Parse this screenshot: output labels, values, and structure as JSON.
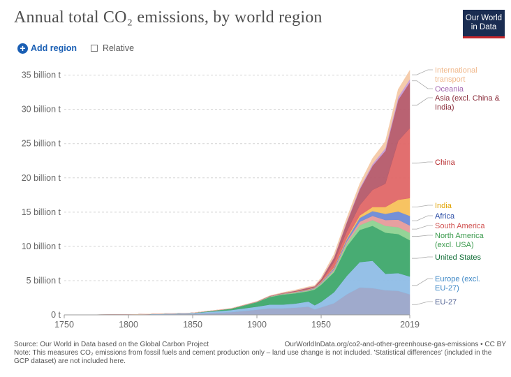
{
  "header": {
    "title": "Annual total CO₂ emissions, by world region",
    "logo_line1": "Our World",
    "logo_line2": "in Data"
  },
  "controls": {
    "add_label": "Add region",
    "relative_label": "Relative"
  },
  "footer": {
    "source": "Source: Our World in Data based on the Global Carbon Project",
    "url": "OurWorldInData.org/co2-and-other-greenhouse-gas-emissions • CC BY",
    "note": "Note: This measures CO₂ emissions from fossil fuels and cement production only – land use change is not included. 'Statistical differences' (included in the GCP dataset) are not included here."
  },
  "chart_data": {
    "type": "area",
    "stacked": true,
    "unit": "billion t",
    "x": [
      1750,
      1800,
      1850,
      1880,
      1900,
      1910,
      1920,
      1930,
      1940,
      1945,
      1950,
      1960,
      1970,
      1980,
      1990,
      2000,
      2010,
      2019
    ],
    "xticks": [
      1750,
      1800,
      1850,
      1900,
      1950,
      2019
    ],
    "yticks": [
      0,
      5,
      10,
      15,
      20,
      25,
      30,
      35
    ],
    "ytick_labels": [
      "0 t",
      "5 billion t",
      "10 billion t",
      "15 billion t",
      "20 billion t",
      "25 billion t",
      "30 billion t",
      "35 billion t"
    ],
    "ylim": [
      0,
      37
    ],
    "grid": "horizontal dashed",
    "legend": "right, inline labels at 2019",
    "series": [
      {
        "name": "EU-27",
        "color": "#9aa5c9",
        "values": [
          0.01,
          0.03,
          0.15,
          0.4,
          0.75,
          0.95,
          0.95,
          1.05,
          1.2,
          0.8,
          1.1,
          1.7,
          3.0,
          4.0,
          3.9,
          3.6,
          3.5,
          3.0
        ]
      },
      {
        "name": "Europe (excl. EU-27)",
        "color": "#8fbde6",
        "values": [
          0.0,
          0.01,
          0.12,
          0.3,
          0.45,
          0.55,
          0.55,
          0.6,
          0.75,
          0.6,
          0.8,
          1.6,
          2.7,
          3.7,
          4.0,
          2.4,
          2.6,
          2.6
        ]
      },
      {
        "name": "United States",
        "color": "#3ea86b",
        "values": [
          0.0,
          0.0,
          0.02,
          0.2,
          0.65,
          1.1,
          1.45,
          1.5,
          1.5,
          2.3,
          2.5,
          2.9,
          4.3,
          4.7,
          5.1,
          6.0,
          5.7,
          5.3
        ]
      },
      {
        "name": "North America (excl. USA)",
        "color": "#8ed291",
        "values": [
          0.0,
          0.0,
          0.0,
          0.01,
          0.03,
          0.05,
          0.07,
          0.09,
          0.1,
          0.12,
          0.15,
          0.25,
          0.45,
          0.7,
          0.85,
          1.0,
          1.0,
          1.1
        ]
      },
      {
        "name": "South America",
        "color": "#e69b9b",
        "values": [
          0.0,
          0.0,
          0.0,
          0.01,
          0.02,
          0.03,
          0.04,
          0.05,
          0.06,
          0.07,
          0.09,
          0.17,
          0.3,
          0.5,
          0.6,
          0.85,
          1.1,
          1.05
        ]
      },
      {
        "name": "Africa",
        "color": "#6d8ad6",
        "values": [
          0.0,
          0.0,
          0.0,
          0.0,
          0.01,
          0.02,
          0.03,
          0.05,
          0.07,
          0.08,
          0.1,
          0.2,
          0.3,
          0.55,
          0.7,
          0.9,
          1.2,
          1.4
        ]
      },
      {
        "name": "India",
        "color": "#f7c05a",
        "values": [
          0.0,
          0.0,
          0.0,
          0.01,
          0.02,
          0.03,
          0.04,
          0.05,
          0.06,
          0.07,
          0.08,
          0.12,
          0.2,
          0.35,
          0.6,
          1.0,
          1.7,
          2.6
        ]
      },
      {
        "name": "China",
        "color": "#e06767",
        "values": [
          0.0,
          0.0,
          0.0,
          0.0,
          0.0,
          0.0,
          0.01,
          0.02,
          0.03,
          0.03,
          0.08,
          0.8,
          0.95,
          1.5,
          2.5,
          3.4,
          8.6,
          10.2
        ]
      },
      {
        "name": "Asia (excl. China & India)",
        "color": "#b55a6a",
        "values": [
          0.0,
          0.0,
          0.0,
          0.01,
          0.02,
          0.03,
          0.05,
          0.1,
          0.2,
          0.1,
          0.3,
          0.6,
          1.3,
          2.3,
          3.5,
          4.8,
          6.0,
          6.7
        ]
      },
      {
        "name": "Oceania",
        "color": "#c79ad4",
        "values": [
          0.0,
          0.0,
          0.0,
          0.01,
          0.01,
          0.02,
          0.02,
          0.03,
          0.03,
          0.03,
          0.05,
          0.1,
          0.15,
          0.22,
          0.3,
          0.38,
          0.44,
          0.45
        ]
      },
      {
        "name": "International transport",
        "color": "#f4c9a6",
        "values": [
          0.0,
          0.0,
          0.0,
          0.0,
          0.0,
          0.02,
          0.05,
          0.1,
          0.1,
          0.1,
          0.18,
          0.4,
          0.5,
          0.6,
          0.8,
          1.0,
          1.1,
          1.3
        ]
      }
    ],
    "labels": [
      {
        "series": "International transport",
        "lines": [
          "International",
          "transport"
        ],
        "color": "#f0b88b"
      },
      {
        "series": "Oceania",
        "lines": [
          "Oceania"
        ],
        "color": "#a366b0"
      },
      {
        "series": "Asia (excl. China & India)",
        "lines": [
          "Asia (excl. China &",
          "India)"
        ],
        "color": "#8a2d3b"
      },
      {
        "series": "China",
        "lines": [
          "China"
        ],
        "color": "#b6282b"
      },
      {
        "series": "India",
        "lines": [
          "India"
        ],
        "color": "#e0a200"
      },
      {
        "series": "Africa",
        "lines": [
          "Africa"
        ],
        "color": "#2a4ca5"
      },
      {
        "series": "South America",
        "lines": [
          "South America"
        ],
        "color": "#d0504f"
      },
      {
        "series": "North America (excl. USA)",
        "lines": [
          "North America",
          "(excl. USA)"
        ],
        "color": "#3a9a4c"
      },
      {
        "series": "United States",
        "lines": [
          "United States"
        ],
        "color": "#0e6b34"
      },
      {
        "series": "Europe (excl. EU-27)",
        "lines": [
          "Europe (excl.",
          "EU-27)"
        ],
        "color": "#3b86c5"
      },
      {
        "series": "EU-27",
        "lines": [
          "EU-27"
        ],
        "color": "#4e5f91"
      }
    ]
  }
}
